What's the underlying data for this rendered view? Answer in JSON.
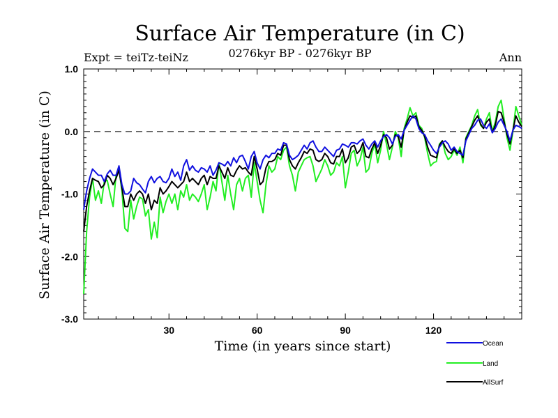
{
  "chart_data": {
    "type": "line",
    "title": "Surface Air Temperature (in C)",
    "subtitle": "0276kyr BP - 0276kyr BP",
    "left_note": "Expt = teiTz-teiNz",
    "right_note": "Ann",
    "xlabel": "Time (in years since start)",
    "ylabel": "Surface Air Temperature (in C)",
    "xlim": [
      1,
      150
    ],
    "ylim": [
      -3.0,
      1.0
    ],
    "x_ticks": [
      30,
      60,
      90,
      120
    ],
    "x_tick_labels": [
      "30",
      "60",
      "90",
      "120"
    ],
    "y_ticks": [
      1.0,
      0.0,
      -1.0,
      -2.0,
      -3.0
    ],
    "y_tick_labels": [
      "1.0",
      "0.0",
      "-1.0",
      "-2.0",
      "-3.0"
    ],
    "reference_line": 0.0,
    "legend_position": "bottom-right, outside plot",
    "colors": {
      "Ocean": "#1010e0",
      "Land": "#22ee22",
      "AllSurf": "#000000",
      "axis": "#000000",
      "reference": "#555555"
    },
    "series": [
      {
        "name": "Ocean",
        "values": [
          -1.25,
          -0.95,
          -0.75,
          -0.6,
          -0.65,
          -0.7,
          -0.7,
          -0.8,
          -0.68,
          -0.62,
          -0.7,
          -0.7,
          -0.55,
          -0.85,
          -1.0,
          -1.0,
          -0.95,
          -0.75,
          -0.82,
          -0.85,
          -0.92,
          -0.98,
          -0.8,
          -0.72,
          -0.82,
          -0.75,
          -0.72,
          -0.8,
          -0.82,
          -0.75,
          -0.6,
          -0.72,
          -0.65,
          -0.78,
          -0.55,
          -0.45,
          -0.62,
          -0.55,
          -0.62,
          -0.65,
          -0.58,
          -0.6,
          -0.65,
          -0.55,
          -0.7,
          -0.62,
          -0.5,
          -0.52,
          -0.55,
          -0.48,
          -0.55,
          -0.42,
          -0.5,
          -0.4,
          -0.38,
          -0.48,
          -0.6,
          -0.4,
          -0.32,
          -0.5,
          -0.6,
          -0.45,
          -0.38,
          -0.42,
          -0.35,
          -0.35,
          -0.28,
          -0.3,
          -0.18,
          -0.2,
          -0.38,
          -0.45,
          -0.42,
          -0.38,
          -0.3,
          -0.22,
          -0.28,
          -0.18,
          -0.15,
          -0.25,
          -0.32,
          -0.32,
          -0.25,
          -0.3,
          -0.35,
          -0.4,
          -0.3,
          -0.28,
          -0.2,
          -0.22,
          -0.25,
          -0.18,
          -0.18,
          -0.2,
          -0.15,
          -0.12,
          -0.22,
          -0.28,
          -0.2,
          -0.15,
          -0.25,
          -0.15,
          -0.08,
          -0.05,
          -0.1,
          -0.2,
          -0.08,
          -0.05,
          -0.12,
          0.02,
          0.1,
          0.18,
          0.25,
          0.2,
          0.05,
          -0.02,
          -0.05,
          -0.15,
          -0.22,
          -0.3,
          -0.35,
          -0.25,
          -0.18,
          -0.15,
          -0.2,
          -0.3,
          -0.25,
          -0.32,
          -0.35,
          -0.38,
          -0.15,
          -0.05,
          0.05,
          0.1,
          0.18,
          0.2,
          0.1,
          0.05,
          0.12,
          -0.02,
          0.05,
          0.15,
          0.2,
          0.1,
          0.0,
          -0.15,
          0.02,
          0.1,
          0.08,
          0.05
        ],
        "values_note": "estimated"
      },
      {
        "name": "Land",
        "values": [
          -2.6,
          -1.6,
          -1.05,
          -0.75,
          -1.1,
          -0.95,
          -1.15,
          -0.8,
          -0.78,
          -1.0,
          -1.2,
          -0.7,
          -0.6,
          -0.95,
          -1.55,
          -1.6,
          -1.1,
          -1.4,
          -1.2,
          -1.05,
          -1.08,
          -1.35,
          -1.25,
          -1.72,
          -1.45,
          -1.7,
          -1.05,
          -1.3,
          -1.12,
          -1.0,
          -1.15,
          -1.0,
          -1.25,
          -0.95,
          -1.05,
          -0.85,
          -1.1,
          -1.0,
          -1.05,
          -1.12,
          -1.0,
          -0.85,
          -1.25,
          -1.05,
          -0.8,
          -0.95,
          -0.5,
          -0.8,
          -1.1,
          -0.7,
          -1.0,
          -1.25,
          -0.85,
          -0.75,
          -0.95,
          -0.75,
          -0.7,
          -1.05,
          -0.5,
          -0.8,
          -1.1,
          -1.3,
          -0.85,
          -0.55,
          -0.65,
          -0.6,
          -0.4,
          -0.45,
          -0.3,
          -0.25,
          -0.55,
          -0.7,
          -0.95,
          -0.65,
          -0.55,
          -0.45,
          -0.42,
          -0.4,
          -0.55,
          -0.8,
          -0.7,
          -0.6,
          -0.45,
          -0.55,
          -0.7,
          -0.65,
          -0.5,
          -0.55,
          -0.4,
          -0.9,
          -0.65,
          -0.35,
          -0.3,
          -0.55,
          -0.45,
          -0.25,
          -0.65,
          -0.6,
          -0.35,
          -0.2,
          -0.5,
          -0.3,
          0.0,
          -0.2,
          -0.45,
          -0.25,
          0.0,
          -0.1,
          -0.4,
          0.05,
          0.2,
          0.38,
          0.25,
          0.3,
          0.1,
          0.05,
          -0.1,
          -0.35,
          -0.55,
          -0.5,
          -0.48,
          -0.2,
          -0.15,
          -0.35,
          -0.45,
          -0.4,
          -0.3,
          -0.38,
          -0.25,
          -0.5,
          -0.1,
          0.0,
          0.1,
          0.25,
          0.35,
          0.1,
          0.05,
          0.2,
          0.3,
          0.0,
          0.15,
          0.4,
          0.5,
          0.2,
          -0.1,
          -0.3,
          0.0,
          0.4,
          0.25,
          0.1
        ],
        "values_note": "estimated"
      },
      {
        "name": "AllSurf",
        "values": [
          -1.6,
          -1.2,
          -0.95,
          -0.75,
          -0.78,
          -0.8,
          -0.9,
          -0.85,
          -0.7,
          -0.75,
          -0.85,
          -0.75,
          -0.62,
          -0.9,
          -1.2,
          -1.2,
          -1.0,
          -1.1,
          -1.0,
          -0.95,
          -1.0,
          -1.15,
          -1.0,
          -1.25,
          -1.1,
          -1.15,
          -0.9,
          -1.0,
          -0.95,
          -0.88,
          -0.8,
          -0.85,
          -0.9,
          -0.85,
          -0.8,
          -0.65,
          -0.8,
          -0.75,
          -0.8,
          -0.85,
          -0.75,
          -0.7,
          -0.85,
          -0.72,
          -0.75,
          -0.75,
          -0.55,
          -0.65,
          -0.75,
          -0.58,
          -0.7,
          -0.72,
          -0.62,
          -0.55,
          -0.6,
          -0.58,
          -0.65,
          -0.7,
          -0.4,
          -0.6,
          -0.85,
          -0.8,
          -0.58,
          -0.48,
          -0.48,
          -0.45,
          -0.35,
          -0.38,
          -0.22,
          -0.22,
          -0.45,
          -0.55,
          -0.6,
          -0.5,
          -0.42,
          -0.32,
          -0.35,
          -0.28,
          -0.3,
          -0.45,
          -0.48,
          -0.45,
          -0.35,
          -0.4,
          -0.5,
          -0.52,
          -0.4,
          -0.4,
          -0.28,
          -0.5,
          -0.42,
          -0.25,
          -0.22,
          -0.35,
          -0.3,
          -0.18,
          -0.4,
          -0.42,
          -0.28,
          -0.18,
          -0.35,
          -0.22,
          -0.05,
          -0.1,
          -0.28,
          -0.22,
          -0.05,
          -0.08,
          -0.25,
          0.02,
          0.15,
          0.25,
          0.22,
          0.25,
          0.08,
          0.02,
          -0.08,
          -0.25,
          -0.38,
          -0.4,
          -0.42,
          -0.22,
          -0.15,
          -0.25,
          -0.32,
          -0.35,
          -0.28,
          -0.35,
          -0.3,
          -0.42,
          -0.12,
          -0.02,
          0.08,
          0.18,
          0.25,
          0.12,
          0.05,
          0.15,
          0.2,
          -0.02,
          0.1,
          0.32,
          0.3,
          0.15,
          -0.05,
          -0.2,
          0.02,
          0.25,
          0.15,
          0.08
        ],
        "values_note": "estimated"
      }
    ]
  }
}
